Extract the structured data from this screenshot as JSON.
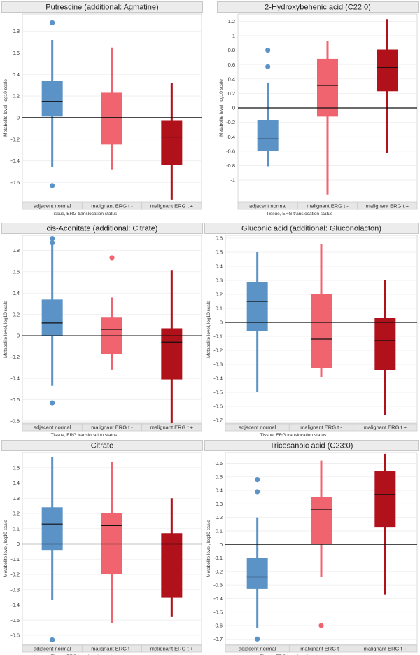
{
  "chart_data": [
    {
      "type": "boxplot",
      "title": "Putrescine (additional: Agmatine)",
      "xlabel": "Tissue, ERG translocation status",
      "ylabel": "Metabolite level, log10 scale",
      "ylim": [
        -0.78,
        0.96
      ],
      "yticks": [
        -0.6,
        -0.4,
        -0.2,
        0,
        0.2,
        0.4,
        0.6,
        0.8
      ],
      "ytick_labels": [
        "-0.6",
        "-0.4",
        "-0.2",
        "0",
        "0.2",
        "0.4",
        "0.6",
        "0.8"
      ],
      "categories": [
        "adjacent normal",
        "malignant ERG t -",
        "malignant ERG t +"
      ],
      "boxes": [
        {
          "min": -0.46,
          "q1": 0.01,
          "median": 0.15,
          "q3": 0.34,
          "max": 0.72,
          "outliers": [
            0.88,
            -0.63
          ]
        },
        {
          "min": -0.48,
          "q1": -0.25,
          "median": 0.0,
          "q3": 0.23,
          "max": 0.65,
          "outliers": []
        },
        {
          "min": -0.76,
          "q1": -0.44,
          "median": -0.18,
          "q3": -0.03,
          "max": 0.32,
          "outliers": []
        }
      ]
    },
    {
      "type": "boxplot",
      "title": "2-Hydroxybehenic acid (C22:0)",
      "xlabel": "Tissue, ERG translocation status",
      "ylabel": "Metabolite level, log10 scale",
      "ylim": [
        -1.3,
        1.3
      ],
      "yticks": [
        -1,
        -0.8,
        -0.6,
        -0.4,
        -0.2,
        0,
        0.2,
        0.4,
        0.6,
        0.8,
        1,
        1.2
      ],
      "ytick_labels": [
        "-1",
        "-0.8",
        "-0.6",
        "-0.4",
        "-0.2",
        "0",
        "0.2",
        "0.4",
        "0.6",
        "0.8",
        "1",
        "1.2"
      ],
      "categories": [
        "adjacent normal",
        "malignant ERG t -",
        "malignant ERG t +"
      ],
      "boxes": [
        {
          "min": -0.81,
          "q1": -0.6,
          "median": -0.43,
          "q3": -0.17,
          "max": 0.35,
          "outliers": [
            0.8,
            0.57
          ]
        },
        {
          "min": -1.2,
          "q1": -0.12,
          "median": 0.31,
          "q3": 0.68,
          "max": 0.93,
          "outliers": []
        },
        {
          "min": -0.63,
          "q1": 0.23,
          "median": 0.56,
          "q3": 0.81,
          "max": 1.23,
          "outliers": []
        }
      ]
    },
    {
      "type": "boxplot",
      "title": "cis-Aconitate (additional: Citrate)",
      "xlabel": "Tissue, ERG translocation status",
      "ylabel": "Metabolite level, log10 scale",
      "ylim": [
        -0.82,
        0.94
      ],
      "yticks": [
        -0.8,
        -0.6,
        -0.4,
        -0.2,
        0,
        0.2,
        0.4,
        0.6,
        0.8
      ],
      "ytick_labels": [
        "-0.8",
        "-0.6",
        "-0.4",
        "-0.2",
        "0",
        "0.2",
        "0.4",
        "0.6",
        "0.8"
      ],
      "categories": [
        "adjacent normal",
        "malignant ERG t -",
        "malignant ERG t +"
      ],
      "boxes": [
        {
          "min": -0.47,
          "q1": 0.0,
          "median": 0.12,
          "q3": 0.34,
          "max": 0.87,
          "outliers": [
            0.91,
            0.87,
            -0.63
          ]
        },
        {
          "min": -0.32,
          "q1": -0.17,
          "median": 0.06,
          "q3": 0.17,
          "max": 0.36,
          "outliers": [
            0.73
          ]
        },
        {
          "min": -0.82,
          "q1": -0.41,
          "median": -0.06,
          "q3": 0.07,
          "max": 0.61,
          "outliers": []
        }
      ]
    },
    {
      "type": "boxplot",
      "title": "Gluconic acid (additional: Gluconolacton)",
      "xlabel": "Tissue, ERG translocation status",
      "ylabel": "Metabolite level, log10 scale",
      "ylim": [
        -0.72,
        0.62
      ],
      "yticks": [
        -0.7,
        -0.6,
        -0.5,
        -0.4,
        -0.3,
        -0.2,
        -0.1,
        0,
        0.1,
        0.2,
        0.3,
        0.4,
        0.5,
        0.6
      ],
      "ytick_labels": [
        "-0.7",
        "-0.6",
        "-0.5",
        "-0.4",
        "-0.3",
        "-0.2",
        "-0.1",
        "0",
        "0.1",
        "0.2",
        "0.3",
        "0.4",
        "0.5",
        "0.6"
      ],
      "categories": [
        "adjacent normal",
        "malignant ERG t -",
        "malignant ERG t +"
      ],
      "boxes": [
        {
          "min": -0.5,
          "q1": -0.06,
          "median": 0.15,
          "q3": 0.29,
          "max": 0.5,
          "outliers": []
        },
        {
          "min": -0.39,
          "q1": -0.33,
          "median": -0.12,
          "q3": 0.2,
          "max": 0.56,
          "outliers": []
        },
        {
          "min": -0.66,
          "q1": -0.34,
          "median": -0.13,
          "q3": 0.03,
          "max": 0.3,
          "outliers": []
        }
      ]
    },
    {
      "type": "boxplot",
      "title": "Citrate",
      "xlabel": "Tissue, ERG translocation status",
      "ylabel": "Metabolite level, log10 scale",
      "ylim": [
        -0.66,
        0.6
      ],
      "yticks": [
        -0.6,
        -0.5,
        -0.4,
        -0.3,
        -0.2,
        -0.1,
        0,
        0.1,
        0.2,
        0.3,
        0.4,
        0.5
      ],
      "ytick_labels": [
        "-0.6",
        "-0.5",
        "-0.4",
        "-0.3",
        "-0.2",
        "-0.1",
        "0",
        "0.1",
        "0.2",
        "0.3",
        "0.4",
        "0.5"
      ],
      "categories": [
        "adjacent normal",
        "malignant ERG t -",
        "malignant ERG t +"
      ],
      "boxes": [
        {
          "min": -0.37,
          "q1": -0.04,
          "median": 0.13,
          "q3": 0.24,
          "max": 0.57,
          "outliers": [
            -0.63
          ]
        },
        {
          "min": -0.52,
          "q1": -0.2,
          "median": 0.12,
          "q3": 0.2,
          "max": 0.54,
          "outliers": []
        },
        {
          "min": -0.48,
          "q1": -0.35,
          "median": 0.0,
          "q3": 0.07,
          "max": 0.3,
          "outliers": []
        }
      ]
    },
    {
      "type": "boxplot",
      "title": "Tricosanoic acid (C23:0)",
      "xlabel": "Tissue, ERG translocation status",
      "ylabel": "Metabolite level, log10 scale",
      "ylim": [
        -0.74,
        0.68
      ],
      "yticks": [
        -0.7,
        -0.6,
        -0.5,
        -0.4,
        -0.3,
        -0.2,
        -0.1,
        0,
        0.1,
        0.2,
        0.3,
        0.4,
        0.5,
        0.6
      ],
      "ytick_labels": [
        "-0.7",
        "-0.6",
        "-0.5",
        "-0.4",
        "-0.3",
        "-0.2",
        "-0.1",
        "0",
        "0.1",
        "0.2",
        "0.3",
        "0.4",
        "0.5",
        "0.6"
      ],
      "categories": [
        "adjacent normal",
        "malignant ERG t -",
        "malignant ERG t +"
      ],
      "boxes": [
        {
          "min": -0.62,
          "q1": -0.33,
          "median": -0.24,
          "q3": -0.1,
          "max": 0.2,
          "outliers": [
            0.48,
            0.39,
            -0.7
          ]
        },
        {
          "min": -0.24,
          "q1": 0.0,
          "median": 0.26,
          "q3": 0.35,
          "max": 0.62,
          "outliers": [
            -0.6
          ]
        },
        {
          "min": -0.37,
          "q1": 0.13,
          "median": 0.37,
          "q3": 0.54,
          "max": 0.67,
          "outliers": []
        }
      ]
    }
  ],
  "colors": {
    "adjacent_normal": "#5b93c7",
    "malignant_ERG_neg": "#f06470",
    "malignant_ERG_pos": "#b0111b"
  }
}
